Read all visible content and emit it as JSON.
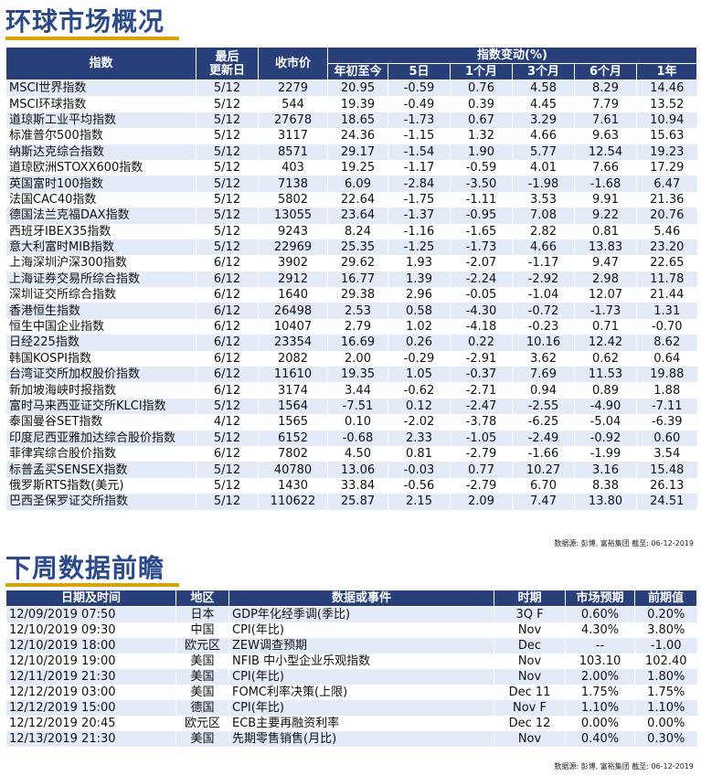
{
  "market": {
    "title": "环球市场概况",
    "headers": {
      "index": "指数",
      "last_update": "最后\n更新日",
      "close": "收市价",
      "change_group": "指数变动(%)",
      "ytd": "年初至今",
      "d5": "5日",
      "m1": "1个月",
      "m3": "3个月",
      "m6": "6个月",
      "y1": "1年"
    },
    "rows": [
      [
        "MSCI世界指数",
        "5/12",
        "2279",
        "20.95",
        "-0.59",
        "0.76",
        "4.58",
        "8.29",
        "14.46"
      ],
      [
        "MSCI环球指数",
        "5/12",
        "544",
        "19.39",
        "-0.49",
        "0.39",
        "4.45",
        "7.79",
        "13.52"
      ],
      [
        "道琼斯工业平均指数",
        "5/12",
        "27678",
        "18.65",
        "-1.73",
        "0.67",
        "3.29",
        "7.61",
        "10.94"
      ],
      [
        "标准普尔500指数",
        "5/12",
        "3117",
        "24.36",
        "-1.15",
        "1.32",
        "4.66",
        "9.63",
        "15.63"
      ],
      [
        "纳斯达克综合指数",
        "5/12",
        "8571",
        "29.17",
        "-1.54",
        "1.90",
        "5.77",
        "12.54",
        "19.23"
      ],
      [
        "道琼欧洲STOXX600指数",
        "5/12",
        "403",
        "19.25",
        "-1.17",
        "-0.59",
        "4.01",
        "7.66",
        "17.29"
      ],
      [
        "英国富时100指数",
        "5/12",
        "7138",
        "6.09",
        "-2.84",
        "-3.50",
        "-1.98",
        "-1.68",
        "6.47"
      ],
      [
        "法国CAC40指数",
        "5/12",
        "5802",
        "22.64",
        "-1.75",
        "-1.11",
        "3.53",
        "9.91",
        "21.36"
      ],
      [
        "德国法兰克福DAX指数",
        "5/12",
        "13055",
        "23.64",
        "-1.37",
        "-0.95",
        "7.08",
        "9.22",
        "20.76"
      ],
      [
        "西班牙IBEX35指数",
        "5/12",
        "9243",
        "8.24",
        "-1.16",
        "-1.65",
        "2.82",
        "0.81",
        "5.46"
      ],
      [
        "意大利富时MIB指数",
        "5/12",
        "22969",
        "25.35",
        "-1.25",
        "-1.73",
        "4.66",
        "13.83",
        "23.20"
      ],
      [
        "上海深圳沪深300指数",
        "6/12",
        "3902",
        "29.62",
        "1.93",
        "-2.07",
        "-1.17",
        "9.47",
        "22.65"
      ],
      [
        "上海证券交易所综合指数",
        "6/12",
        "2912",
        "16.77",
        "1.39",
        "-2.24",
        "-2.92",
        "2.98",
        "11.78"
      ],
      [
        "深圳证交所综合指数",
        "6/12",
        "1640",
        "29.38",
        "2.96",
        "-0.05",
        "-1.04",
        "12.07",
        "21.44"
      ],
      [
        "香港恒生指数",
        "6/12",
        "26498",
        "2.53",
        "0.58",
        "-4.30",
        "-0.72",
        "-1.73",
        "1.31"
      ],
      [
        "恒生中国企业指数",
        "6/12",
        "10407",
        "2.79",
        "1.02",
        "-4.18",
        "-0.23",
        "0.71",
        "-0.70"
      ],
      [
        "日经225指数",
        "6/12",
        "23354",
        "16.69",
        "0.26",
        "0.22",
        "10.16",
        "12.42",
        "8.62"
      ],
      [
        "韩国KOSPI指数",
        "6/12",
        "2082",
        "2.00",
        "-0.29",
        "-2.91",
        "3.62",
        "0.62",
        "0.64"
      ],
      [
        "台湾证交所加权股价指数",
        "6/12",
        "11610",
        "19.35",
        "1.05",
        "-0.37",
        "7.69",
        "11.53",
        "19.88"
      ],
      [
        "新加坡海峡时报指数",
        "6/12",
        "3174",
        "3.44",
        "-0.62",
        "-2.71",
        "0.94",
        "0.89",
        "1.88"
      ],
      [
        "富时马来西亚证交所KLCI指数",
        "5/12",
        "1564",
        "-7.51",
        "0.12",
        "-2.47",
        "-2.55",
        "-4.90",
        "-7.11"
      ],
      [
        "泰国曼谷SET指数",
        "4/12",
        "1565",
        "0.10",
        "-2.02",
        "-3.78",
        "-6.25",
        "-5.04",
        "-6.39"
      ],
      [
        "印度尼西亚雅加达综合股价指数",
        "5/12",
        "6152",
        "-0.68",
        "2.33",
        "-1.05",
        "-2.49",
        "-0.92",
        "0.60"
      ],
      [
        "菲律宾综合股价指数",
        "6/12",
        "7802",
        "4.50",
        "0.81",
        "-2.79",
        "-1.66",
        "-1.99",
        "3.54"
      ],
      [
        "标普孟买SENSEX指数",
        "5/12",
        "40780",
        "13.06",
        "-0.03",
        "0.77",
        "10.27",
        "3.16",
        "15.48"
      ],
      [
        "俄罗斯RTS指数(美元)",
        "5/12",
        "1430",
        "33.84",
        "-0.56",
        "-2.79",
        "6.70",
        "8.38",
        "26.13"
      ],
      [
        "巴西圣保罗证交所指数",
        "5/12",
        "110622",
        "25.87",
        "2.15",
        "2.09",
        "7.47",
        "13.80",
        "24.51"
      ]
    ],
    "source": "数据源: 彭博, 富裕集团 截至: 06-12-2019"
  },
  "preview": {
    "title": "下周数据前瞻",
    "headers": {
      "datetime": "日期及时间",
      "region": "地区",
      "event": "数据或事件",
      "period": "时期",
      "forecast": "市场预期",
      "previous": "前期值"
    },
    "rows": [
      [
        "12/09/2019 07:50",
        "日本",
        "GDP年化经季调(季比)",
        "3Q F",
        "0.60%",
        "0.20%"
      ],
      [
        "12/10/2019 09:30",
        "中国",
        "CPI(年比)",
        "Nov",
        "4.30%",
        "3.80%"
      ],
      [
        "12/10/2019 18:00",
        "欧元区",
        "ZEW调查预期",
        "Dec",
        "--",
        "-1.00"
      ],
      [
        "12/10/2019 19:00",
        "美国",
        "NFIB 中小型企业乐观指数",
        "Nov",
        "103.10",
        "102.40"
      ],
      [
        "12/11/2019 21:30",
        "美国",
        "CPI(年比)",
        "Nov",
        "2.00%",
        "1.80%"
      ],
      [
        "12/12/2019 03:00",
        "美国",
        "FOMC利率决策(上限)",
        "Dec 11",
        "1.75%",
        "1.75%"
      ],
      [
        "12/12/2019 15:00",
        "德国",
        "CPI(年比)",
        "Nov F",
        "1.10%",
        "1.10%"
      ],
      [
        "12/12/2019 20:45",
        "欧元区",
        "ECB主要再融资利率",
        "Dec 12",
        "0.00%",
        "0.00%"
      ],
      [
        "12/13/2019 21:30",
        "美国",
        "先期零售销售(月比)",
        "Nov",
        "0.40%",
        "0.30%"
      ]
    ],
    "source": "数据源: 彭博, 富裕集团 截至: 06-12-2019"
  }
}
